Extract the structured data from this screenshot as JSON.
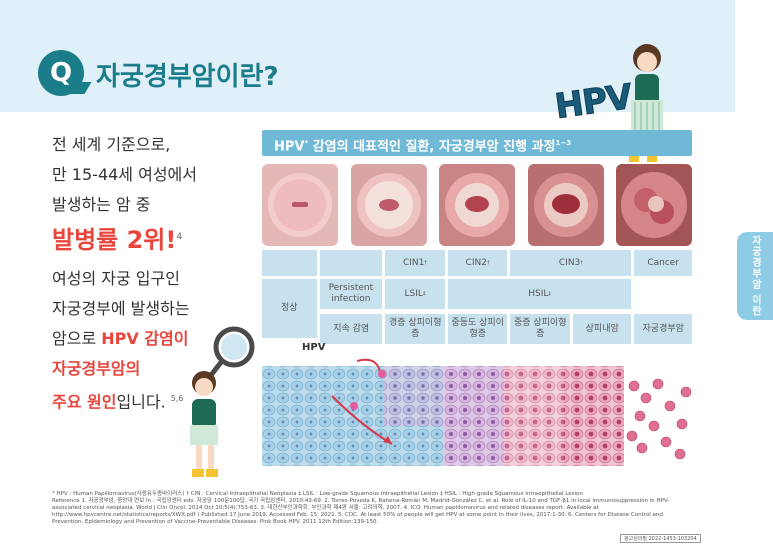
{
  "header": {
    "badge": "Q",
    "title": "자궁경부암이란?"
  },
  "side_tab": {
    "label": "자궁경부암 이란"
  },
  "hpv_logo": "HPV",
  "left": {
    "lines1": [
      "전 세계 기준으로,",
      "만 15-44세 여성에서",
      "발생하는 암 중"
    ],
    "highlight": "발병률 2위!",
    "highlight_ref": "4",
    "lines2": [
      "여성의 자궁 입구인",
      "자궁경부에 발생하는"
    ],
    "line3_pre": "암으로 ",
    "line3_red": "HPV 감염이",
    "line4_red": "자궁경부암의",
    "line5_red": "주요 원인",
    "line5_post": "입니다.",
    "line5_ref": "5,6"
  },
  "chart": {
    "title_pre": "HPV",
    "title_ref": "*",
    "title_post": " 감염의 대표적인 질환, 자궁경부암 진행 과정",
    "title_sup": "1~3",
    "hpv_label": "HPV",
    "row1": {
      "cin1": "CIN1",
      "cin1_ref": "†",
      "cin2": "CIN2",
      "cin2_ref": "†",
      "cin3": "CIN3",
      "cin3_ref": "†",
      "cancer": "Cancer"
    },
    "row2": {
      "normal": "정상",
      "persistent": "Persistent infection",
      "lsil": "LSIL",
      "lsil_ref": "‡",
      "hsil": "HSIL",
      "hsil_ref": "‡"
    },
    "row3": {
      "c1": "지속 감염",
      "c2": "경증 상피이형증",
      "c3": "중등도 상피이형증",
      "c4": "중증 상피이형증",
      "c5": "상피내암",
      "c6": "자궁경부암"
    }
  },
  "colors": {
    "accent_teal": "#1b7d8a",
    "accent_red": "#e8463c",
    "header_blue": "#6fb8d6",
    "cell_blue": "#c8e1ef"
  },
  "footnote": {
    "line1": "* HPV : Human Papillomavirus(사람유두종바이러스) † CIN : Cervical Intraepithelial Neoplasia ‡ LSIL : Low-grade Squamous Intraepithelial Lesion ‡ HSIL : High-grade Squamous Intraepithelial Lesion",
    "line2": "Reference 1. 자궁경부암, 중앙대 연보 In : 국립암센터 eds. 자궁암 100문100답. 국가 국립암센터. 2010:43-69. 2. Torres-Poveda K, Bahena-Román M, Madrid-González C, et al. Role of IL-10 and TGF-β1 in local immunosuppression in HPV-associated cervical neoplasia. World J Clin Oncol. 2014 Oct 10;5(4):753-63. 3. 대한산부인과학회. 부인과학 제4판 서울: 고려의학, 2007. 4. ICO. Human papillomavirus and related diseases report. Available at http://www.hpvcentre.net/statistics/reports/XWX.pdf ) Published 17 June 2019. Accessed Feb. 15, 2021. 5. CDC. At least 50% of people will get HPV at some point in their lives, 2017:1-30. 6. Centers for Disease Control and Prevention. Epidemiology and Prevention of Vaccine-Preventable Diseases. Pink Book HPV. 2011 12th Edition:139-150."
  },
  "code": "광고심의필 2022-1453-103204"
}
